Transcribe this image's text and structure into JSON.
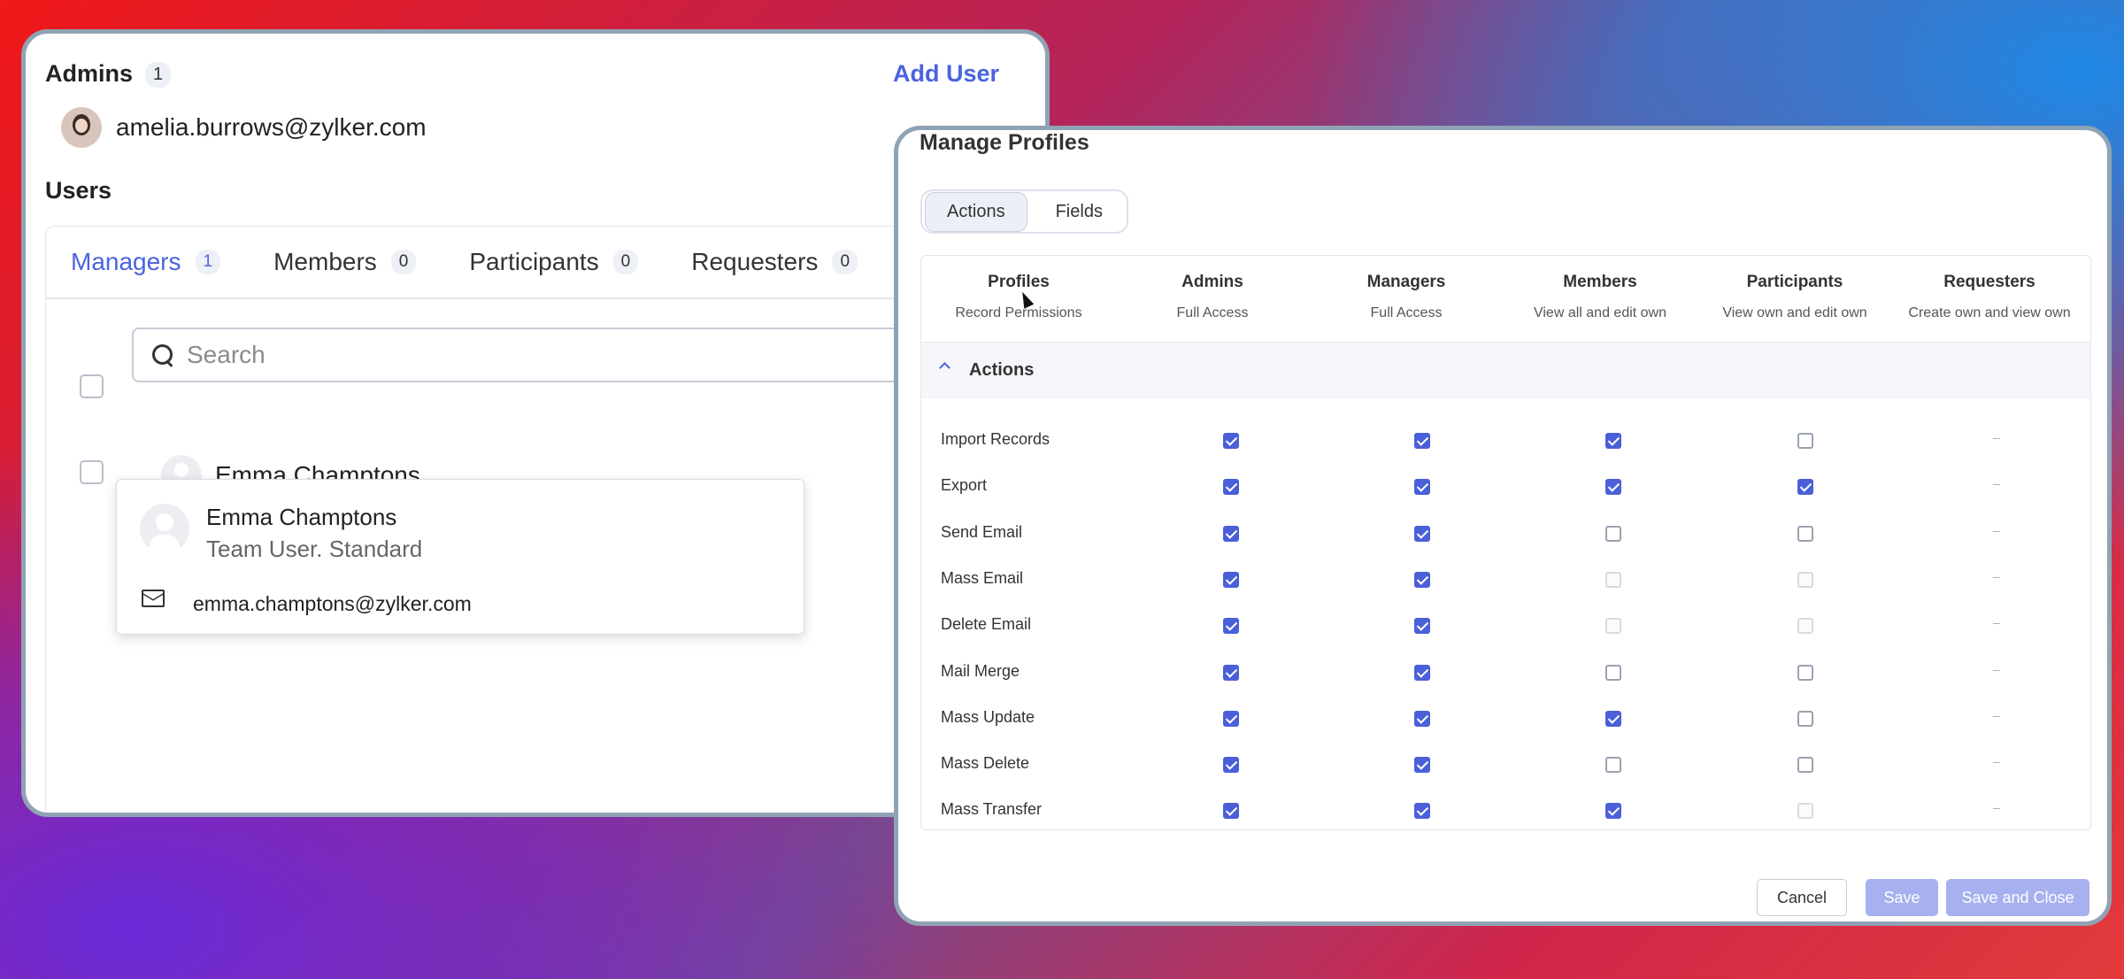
{
  "left": {
    "admins_title": "Admins",
    "admins_count": "1",
    "add_user": "Add User",
    "admin_email": "amelia.burrows@zylker.com",
    "users_title": "Users",
    "tabs": [
      {
        "label": "Managers",
        "count": "1"
      },
      {
        "label": "Members",
        "count": "0"
      },
      {
        "label": "Participants",
        "count": "0"
      },
      {
        "label": "Requesters",
        "count": "0"
      }
    ],
    "search_placeholder": "Search",
    "user_name": "Emma Champtons",
    "popover": {
      "name": "Emma Champtons",
      "role": "Team User. Standard",
      "email": "emma.champtons@zylker.com"
    }
  },
  "modal": {
    "title": "Manage Profiles",
    "segments": [
      "Actions",
      "Fields"
    ],
    "columns": [
      {
        "title": "Profiles",
        "subtitle": "Record Permissions"
      },
      {
        "title": "Admins",
        "subtitle": "Full Access"
      },
      {
        "title": "Managers",
        "subtitle": "Full Access"
      },
      {
        "title": "Members",
        "subtitle": "View all and edit own"
      },
      {
        "title": "Participants",
        "subtitle": "View own and edit own"
      },
      {
        "title": "Requesters",
        "subtitle": "Create own and view own"
      }
    ],
    "section": "Actions",
    "rows": [
      {
        "label": "Import Records",
        "admins": "on",
        "managers": "on",
        "members": "on",
        "participants": "off",
        "requesters": "–"
      },
      {
        "label": "Export",
        "admins": "on",
        "managers": "on",
        "members": "on",
        "participants": "on",
        "requesters": "–"
      },
      {
        "label": "Send Email",
        "admins": "on",
        "managers": "on",
        "members": "off",
        "participants": "off",
        "requesters": "–"
      },
      {
        "label": "Mass Email",
        "admins": "on",
        "managers": "on",
        "members": "disabled",
        "participants": "disabled",
        "requesters": "–"
      },
      {
        "label": "Delete Email",
        "admins": "on",
        "managers": "on",
        "members": "disabled",
        "participants": "disabled",
        "requesters": "–"
      },
      {
        "label": "Mail Merge",
        "admins": "on",
        "managers": "on",
        "members": "off",
        "participants": "off",
        "requesters": "–"
      },
      {
        "label": "Mass Update",
        "admins": "on",
        "managers": "on",
        "members": "on",
        "participants": "off",
        "requesters": "–"
      },
      {
        "label": "Mass Delete",
        "admins": "on",
        "managers": "on",
        "members": "off",
        "participants": "off",
        "requesters": "–"
      },
      {
        "label": "Mass Transfer",
        "admins": "on",
        "managers": "on",
        "members": "on",
        "participants": "disabled",
        "requesters": "–"
      }
    ],
    "buttons": {
      "cancel": "Cancel",
      "save": "Save",
      "save_close": "Save and Close"
    }
  },
  "colors": {
    "accent": "#4a63e0",
    "checkbox_on": "#4a5fd8",
    "save_disabled": "#a7b1ef"
  }
}
